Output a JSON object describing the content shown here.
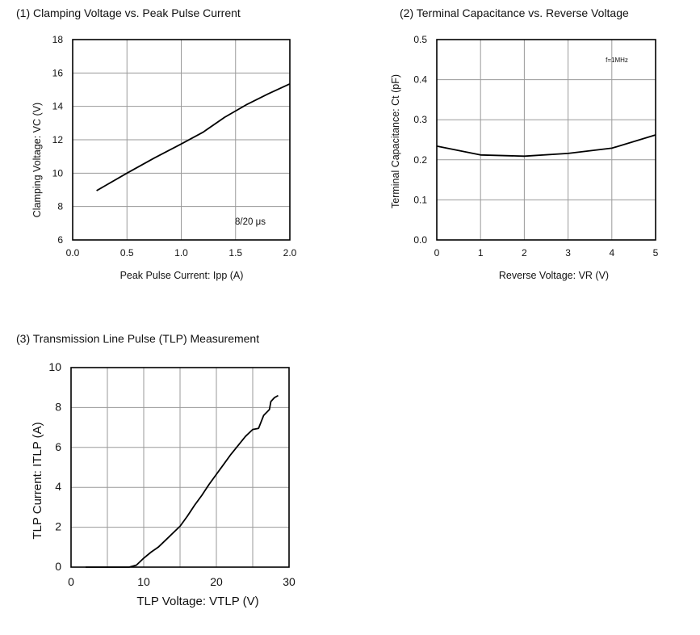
{
  "chart_data": [
    {
      "type": "line",
      "title": "(1) Clamping Voltage vs. Peak Pulse Current",
      "xlabel": "Peak Pulse Current: Ipp (A)",
      "ylabel": "Clamping Voltage: VC (V)",
      "xlim": [
        0,
        2.0
      ],
      "ylim": [
        6,
        18
      ],
      "xticks": [
        "0.0",
        "0.5",
        "1.0",
        "1.5",
        "2.0"
      ],
      "yticks": [
        "6",
        "8",
        "10",
        "12",
        "14",
        "16",
        "18"
      ],
      "grid": true,
      "annotation": "8/20 μs",
      "series": [
        {
          "x": [
            0.22,
            0.5,
            0.75,
            1.0,
            1.2,
            1.4,
            1.6,
            1.8,
            2.0
          ],
          "y": [
            8.95,
            10.0,
            10.9,
            11.75,
            12.45,
            13.35,
            14.1,
            14.75,
            15.35
          ]
        }
      ]
    },
    {
      "type": "line",
      "title": "(2) Terminal Capacitance vs. Reverse Voltage",
      "xlabel": "Reverse Voltage: VR (V)",
      "ylabel": "Terminal Capacitance: Ct (pF)",
      "xlim": [
        0,
        5
      ],
      "ylim": [
        0,
        0.5
      ],
      "xticks": [
        "0",
        "1",
        "2",
        "3",
        "4",
        "5"
      ],
      "yticks": [
        "0.0",
        "0.1",
        "0.2",
        "0.3",
        "0.4",
        "0.5"
      ],
      "grid": true,
      "annotation": "f=1MHz",
      "series": [
        {
          "x": [
            0,
            1,
            2,
            3,
            4,
            5
          ],
          "y": [
            0.234,
            0.212,
            0.209,
            0.216,
            0.229,
            0.262
          ]
        }
      ]
    },
    {
      "type": "line",
      "title": "(3) Transmission Line Pulse (TLP) Measurement",
      "xlabel": "TLP Voltage: VTLP (V)",
      "ylabel": "TLP Current: ITLP (A)",
      "xlim": [
        0,
        30
      ],
      "ylim": [
        0,
        10
      ],
      "xticks": [
        "0",
        "10",
        "20",
        "30"
      ],
      "yticks": [
        "0",
        "2",
        "4",
        "6",
        "8",
        "10"
      ],
      "grid": true,
      "series": [
        {
          "x": [
            2,
            8,
            9,
            10,
            11,
            12,
            13,
            14,
            15,
            16,
            17,
            18,
            19,
            20,
            21,
            22,
            23,
            24,
            25,
            25.8,
            26.5,
            27.3,
            27.5,
            28,
            28.5
          ],
          "y": [
            0,
            0,
            0.1,
            0.45,
            0.75,
            1.0,
            1.35,
            1.7,
            2.05,
            2.55,
            3.1,
            3.6,
            4.15,
            4.65,
            5.15,
            5.65,
            6.1,
            6.55,
            6.9,
            6.95,
            7.6,
            7.9,
            8.3,
            8.5,
            8.6
          ]
        }
      ]
    }
  ]
}
